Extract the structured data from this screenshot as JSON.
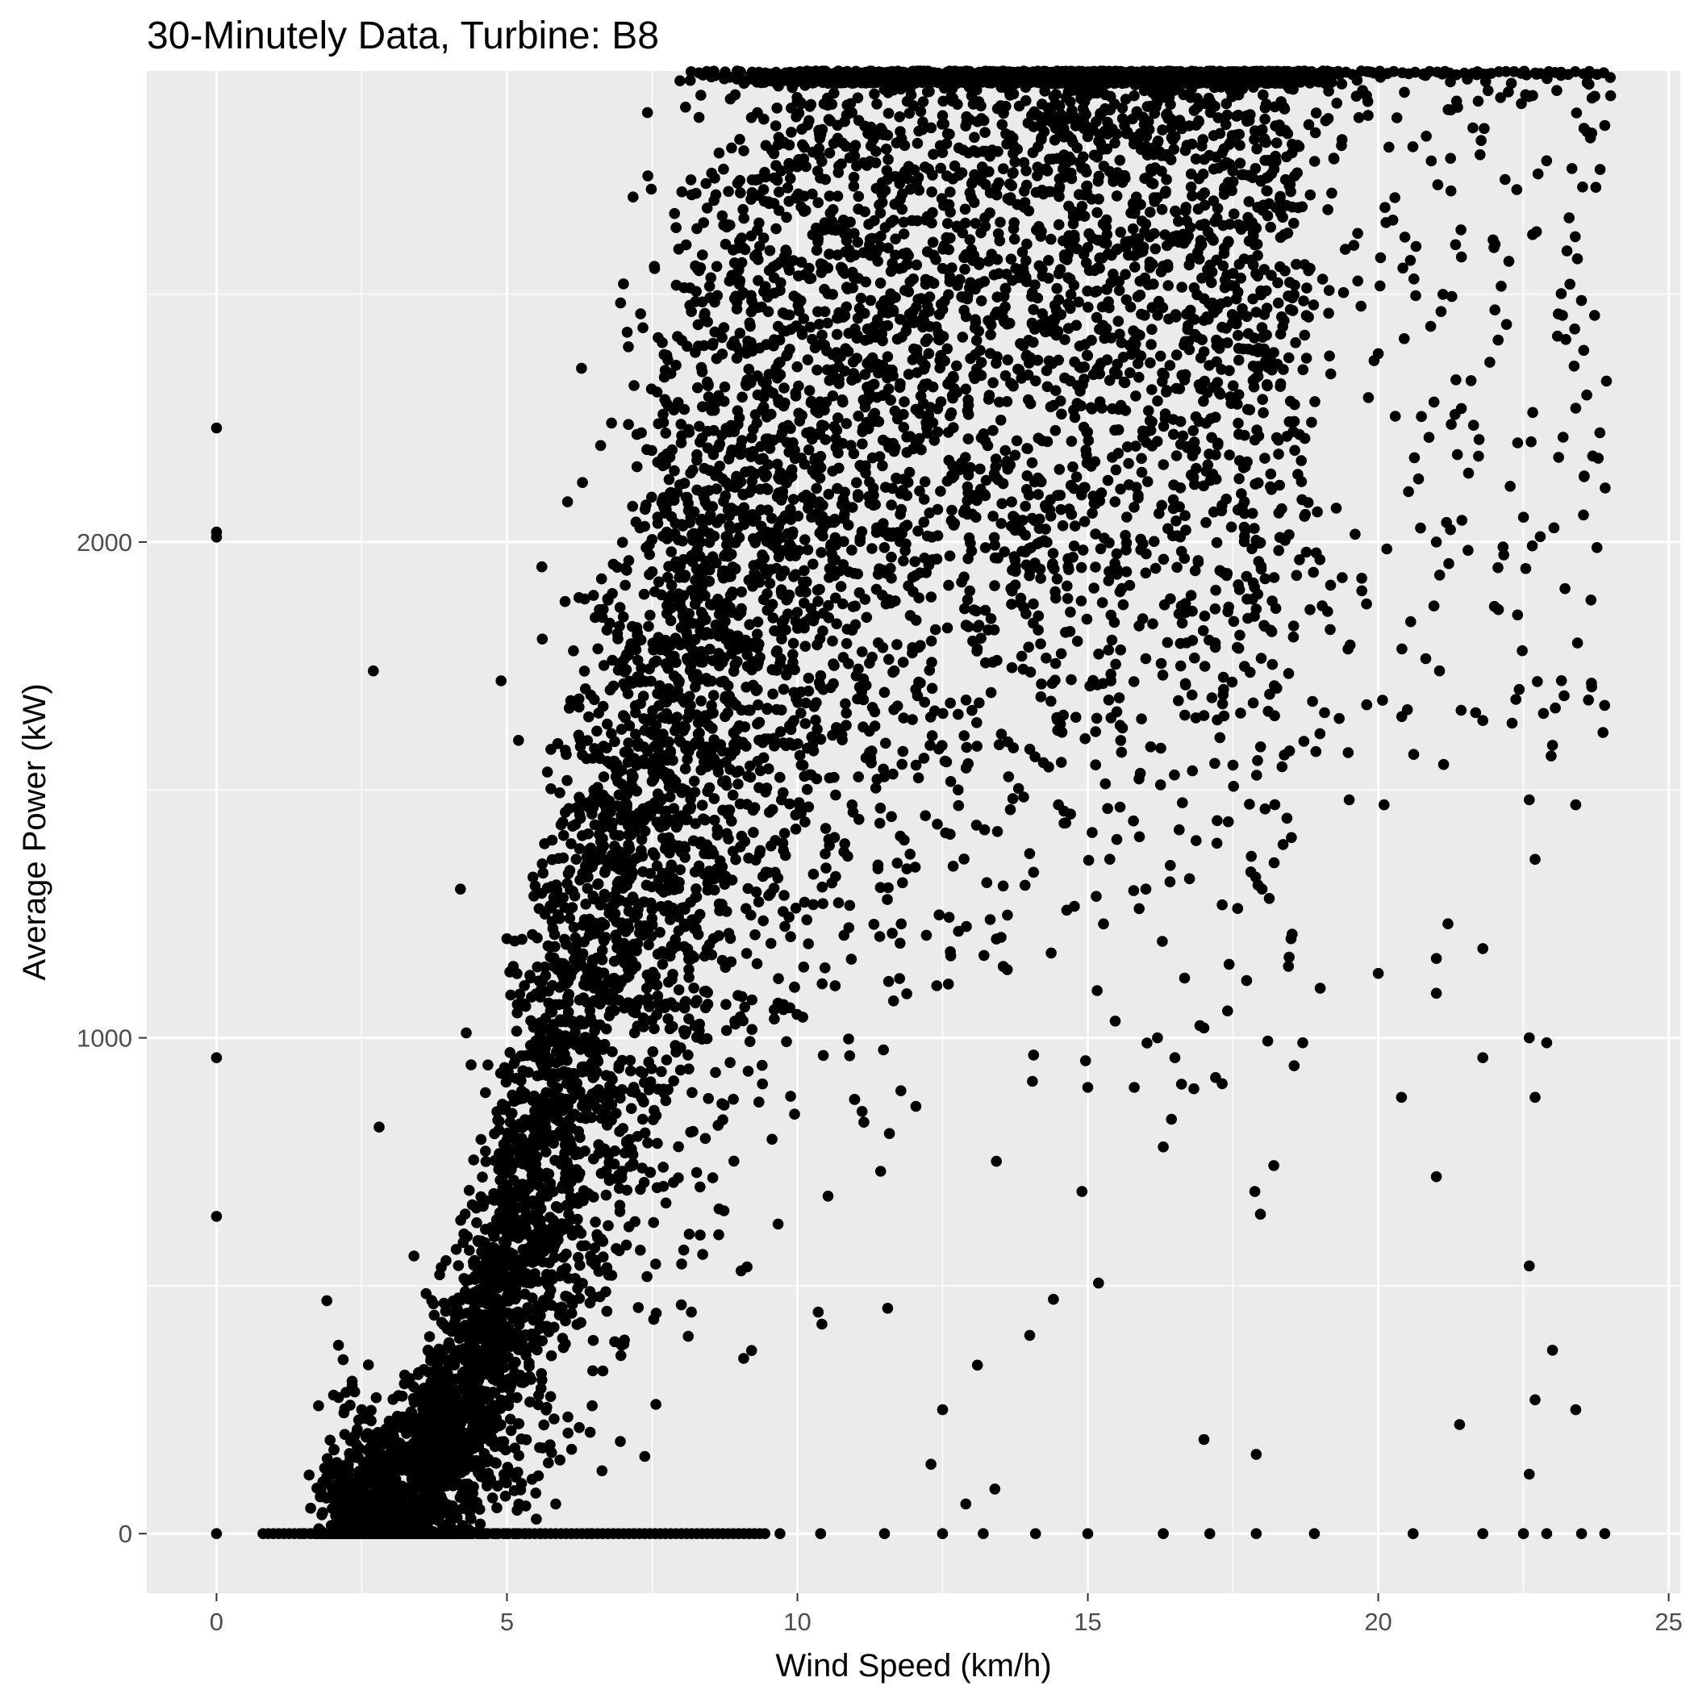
{
  "chart_data": {
    "type": "scatter",
    "title": "30-Minutely Data, Turbine: B8",
    "xlabel": "Wind Speed (km/h)",
    "ylabel": "Average Power (kW)",
    "xlim": [
      -1.2,
      25.2
    ],
    "ylim": [
      -120,
      2950
    ],
    "x_ticks": [
      0,
      5,
      10,
      15,
      20,
      25
    ],
    "y_ticks": [
      0,
      1000,
      2000
    ],
    "x_tick_labels": [
      "0",
      "5",
      "10",
      "15",
      "20",
      "25"
    ],
    "y_tick_labels": [
      "0",
      "1000",
      "2000"
    ],
    "grid": true,
    "legend": "none",
    "colors": {
      "panel": "#ebebeb",
      "grid": "#ffffff",
      "point": "#000000"
    },
    "rated_power": 2950,
    "cut_in_speed": 3,
    "points": [
      [
        0,
        2230
      ],
      [
        0,
        2020
      ],
      [
        0,
        2010
      ],
      [
        0,
        960
      ],
      [
        0,
        640
      ],
      [
        0,
        0
      ],
      [
        2.7,
        1740
      ],
      [
        2.8,
        820
      ],
      [
        4.2,
        1300
      ],
      [
        4.3,
        1010
      ],
      [
        4.9,
        1720
      ],
      [
        5.0,
        1200
      ],
      [
        5.2,
        1600
      ],
      [
        5.6,
        1950
      ],
      [
        6.0,
        1880
      ],
      [
        6.3,
        2120
      ],
      [
        6.8,
        2240
      ],
      [
        7.0,
        1760
      ],
      [
        7.5,
        1940
      ],
      [
        8.0,
        2200
      ],
      [
        8.8,
        2640
      ],
      [
        9.0,
        2520
      ],
      [
        9.3,
        2580
      ],
      [
        10.2,
        2850
      ],
      [
        10.6,
        2630
      ],
      [
        11.0,
        2800
      ],
      [
        12.0,
        2880
      ],
      [
        12.5,
        2860
      ],
      [
        13.0,
        2900
      ],
      [
        13.5,
        2880
      ],
      [
        1.9,
        470
      ],
      [
        2.1,
        380
      ],
      [
        2.0,
        120
      ],
      [
        2.5,
        250
      ],
      [
        3.4,
        560
      ],
      [
        16.6,
        1750
      ],
      [
        17.0,
        1650
      ],
      [
        17.5,
        1550
      ],
      [
        18.0,
        1300
      ],
      [
        18.5,
        1200
      ],
      [
        19.0,
        1100
      ],
      [
        19.5,
        1480
      ],
      [
        20.0,
        1130
      ],
      [
        20.1,
        1470
      ],
      [
        21.0,
        1160
      ],
      [
        21.2,
        1230
      ],
      [
        21.8,
        1180
      ],
      [
        22.0,
        1870
      ],
      [
        22.6,
        1480
      ],
      [
        22.7,
        1360
      ],
      [
        23.0,
        1590
      ],
      [
        23.2,
        1690
      ],
      [
        23.4,
        1470
      ],
      [
        16.0,
        1300
      ],
      [
        15.5,
        1400
      ],
      [
        16.2,
        1000
      ],
      [
        16.5,
        960
      ],
      [
        15.8,
        900
      ],
      [
        15.0,
        900
      ],
      [
        14.9,
        690
      ],
      [
        16.3,
        780
      ],
      [
        17.0,
        1020
      ],
      [
        17.2,
        920
      ],
      [
        18.7,
        990
      ],
      [
        20.4,
        880
      ],
      [
        21.8,
        960
      ],
      [
        22.6,
        1000
      ],
      [
        22.9,
        990
      ],
      [
        22.7,
        880
      ],
      [
        21.0,
        1090
      ],
      [
        21.0,
        720
      ],
      [
        22.6,
        540
      ],
      [
        23.0,
        370
      ],
      [
        22.7,
        270
      ],
      [
        23.4,
        250
      ],
      [
        21.4,
        220
      ],
      [
        17.0,
        190
      ],
      [
        17.9,
        160
      ],
      [
        22.6,
        120
      ],
      [
        14.0,
        400
      ],
      [
        13.1,
        340
      ],
      [
        12.5,
        250
      ],
      [
        12.3,
        140
      ],
      [
        12.9,
        60
      ],
      [
        13.4,
        90
      ],
      [
        21.8,
        1640
      ],
      [
        22.4,
        2200
      ],
      [
        22.5,
        2050
      ],
      [
        23.1,
        2460
      ],
      [
        23.3,
        2520
      ],
      [
        23.4,
        2270
      ],
      [
        24.0,
        2900
      ],
      [
        23.9,
        2840
      ],
      [
        20.0,
        2380
      ],
      [
        21.0,
        2000
      ],
      [
        15.0,
        0
      ],
      [
        16.3,
        0
      ],
      [
        17.1,
        0
      ],
      [
        17.9,
        0
      ],
      [
        18.9,
        0
      ],
      [
        20.6,
        0
      ],
      [
        21.8,
        0
      ],
      [
        22.5,
        0
      ],
      [
        22.9,
        0
      ],
      [
        23.5,
        0
      ],
      [
        23.9,
        0
      ],
      [
        11.5,
        0
      ],
      [
        12.5,
        0
      ],
      [
        13.2,
        0
      ],
      [
        14.1,
        0
      ],
      [
        9.7,
        0
      ],
      [
        10.4,
        0
      ]
    ]
  }
}
